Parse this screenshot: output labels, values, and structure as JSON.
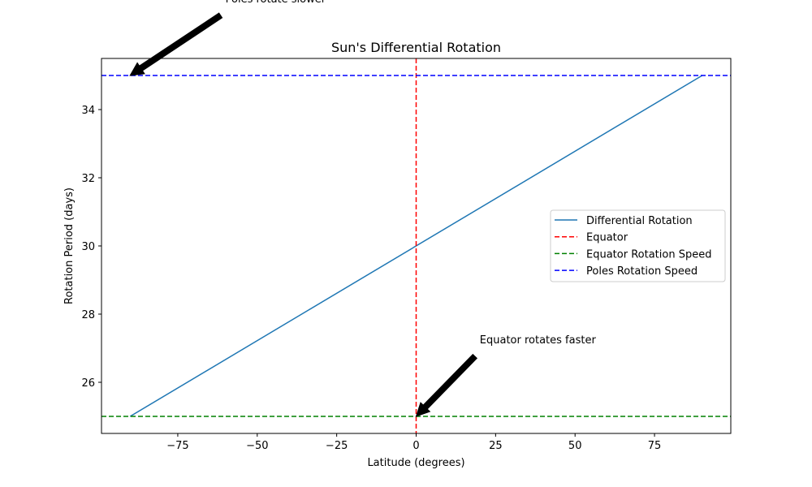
{
  "chart_data": {
    "type": "line",
    "title": "Sun's Differential Rotation",
    "xlabel": "Latitude (degrees)",
    "ylabel": "Rotation Period (days)",
    "xlim": [
      -99,
      99
    ],
    "ylim": [
      24.5,
      35.5
    ],
    "xticks": [
      -75,
      -50,
      -25,
      0,
      25,
      50,
      75
    ],
    "xtick_labels": [
      "−75",
      "−50",
      "−25",
      "0",
      "25",
      "50",
      "75"
    ],
    "yticks": [
      26,
      28,
      30,
      32,
      34
    ],
    "ytick_labels": [
      "26",
      "28",
      "30",
      "32",
      "34"
    ],
    "grid": false,
    "legend_position": "center-right",
    "series": [
      {
        "name": "Differential Rotation",
        "style": "solid",
        "color": "#1f77b4",
        "x": [
          -90,
          90
        ],
        "y": [
          25,
          35
        ]
      },
      {
        "name": "Equator",
        "style": "dashed",
        "color": "#ff0000",
        "orientation": "vertical",
        "value": 0
      },
      {
        "name": "Equator Rotation Speed",
        "style": "dashed",
        "color": "#008000",
        "orientation": "horizontal",
        "value": 25
      },
      {
        "name": "Poles Rotation Speed",
        "style": "dashed",
        "color": "#0000ff",
        "orientation": "horizontal",
        "value": 35
      }
    ],
    "annotations": [
      {
        "text": "Equator rotates faster",
        "xy": [
          0,
          25
        ],
        "xytext": [
          20,
          27
        ]
      },
      {
        "text": "Poles rotate slower",
        "xy": [
          -90,
          35
        ],
        "xytext": [
          -60,
          37
        ]
      }
    ]
  }
}
